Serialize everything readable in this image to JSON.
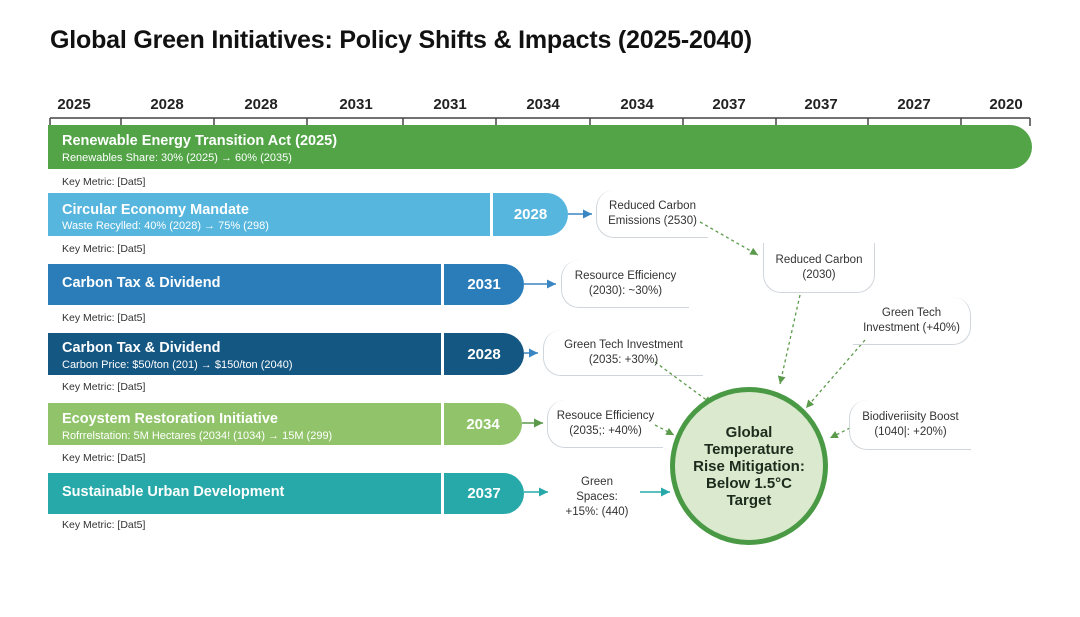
{
  "title": "Global Green Initiatives: Policy Shifts & Impacts (2025-2040)",
  "timeline_ticks": [
    "2025",
    "2028",
    "2028",
    "2031",
    "2031",
    "2034",
    "2034",
    "2037",
    "2037",
    "2027",
    "2020"
  ],
  "metric_label": "Key Metric: [Dat5]",
  "bars": [
    {
      "title": "Renewable Energy Transition Act (2025)",
      "subtitle": "Renewables Share: 30% (2025) → 60% (2035)",
      "color": "#52a447"
    },
    {
      "title": "Circular Economy Mandate",
      "subtitle": "Waste Recylled: 40% (2028) → 75% (298)",
      "cap": "2028",
      "color": "#56b6de"
    },
    {
      "title": "Carbon Tax & Dividend",
      "subtitle": "",
      "cap": "2031",
      "color": "#2a7db9"
    },
    {
      "title": "Carbon Tax & Dividend",
      "subtitle": "Carbon Price: $50/ton (201) → $150/ton (2040)",
      "cap": "2028",
      "color": "#145782"
    },
    {
      "title": "Ecoystem Restoration Initiative",
      "subtitle": "Rofrrelstation: 5M Hectares (2034! (1034) → 15M (299)",
      "cap": "2034",
      "color": "#91c46a"
    },
    {
      "title": "Sustainable Urban Development",
      "subtitle": "",
      "cap": "2037",
      "color": "#27a9a9"
    }
  ],
  "impacts": {
    "reduced_carbon_emissions": "Reduced Carbon Emissions (2530)",
    "resource_efficiency_1": "Resource Efficiency (2030): ~30%)",
    "green_tech_investment_1": "Green Tech Investment (2035: +30%)",
    "resource_efficiency_2": "Resouce Efficiency (2035;: +40%)",
    "green_spaces": "Green Spaces: +15%: (440)",
    "reduced_carbon": "Reduced Carbon (2030)",
    "green_tech_investment_2": "Green Tech Investment (+40%)",
    "biodiversity_boost": "Biodiveriisity Boost (1040|: +20%)"
  },
  "goal": "Global Temperature Rise Mitigation: Below 1.5°C Target"
}
